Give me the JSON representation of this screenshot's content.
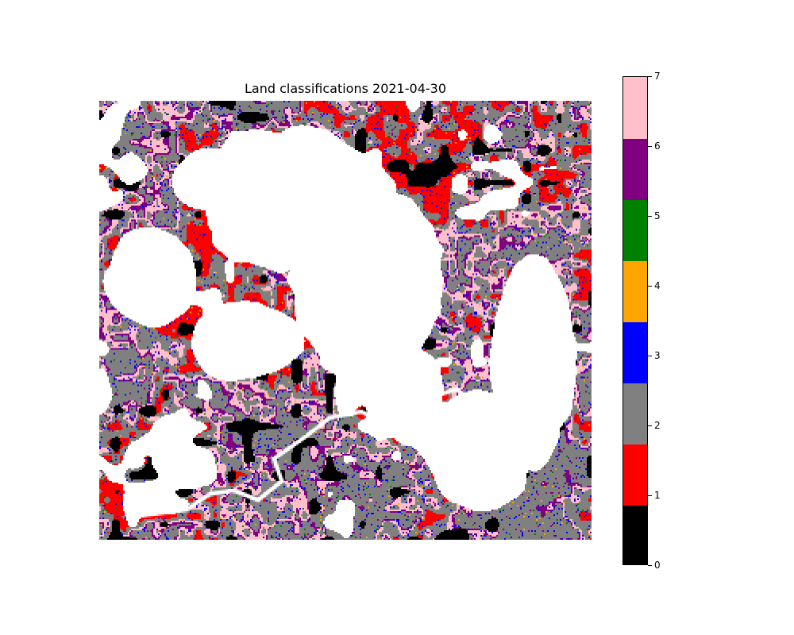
{
  "chart_data": {
    "type": "heatmap",
    "title": "Land classifications 2021-04-30",
    "xlabel": "",
    "ylabel": "",
    "grid": false,
    "axes_visible": false,
    "colorbar": {
      "position": "right",
      "vmin": 0,
      "vmax": 7,
      "ticks": [
        "0",
        "1",
        "2",
        "3",
        "4",
        "5",
        "6",
        "7"
      ],
      "classes": [
        {
          "value": 0,
          "color": "#000000"
        },
        {
          "value": 1,
          "color": "#ff0000"
        },
        {
          "value": 2,
          "color": "#808080"
        },
        {
          "value": 3,
          "color": "#0000ff"
        },
        {
          "value": 4,
          "color": "#ffa500"
        },
        {
          "value": 5,
          "color": "#008000"
        },
        {
          "value": 6,
          "color": "#800080"
        },
        {
          "value": 7,
          "color": "#ffc0cb"
        }
      ]
    },
    "nodata_color": "#ffffff"
  }
}
